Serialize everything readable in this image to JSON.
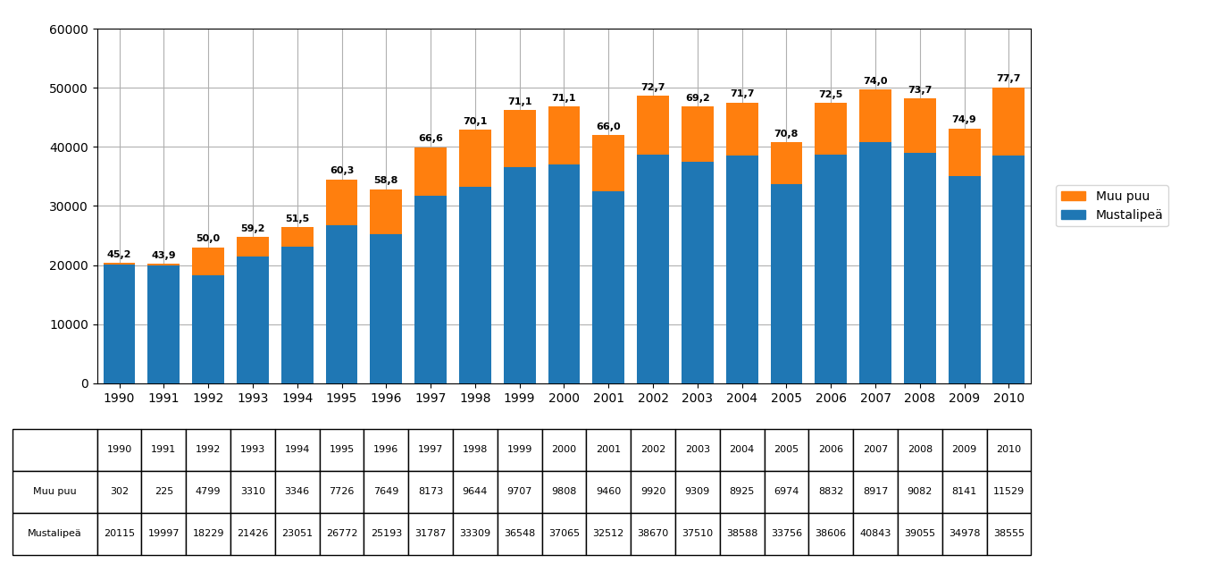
{
  "chart_data": {
    "type": "bar",
    "stacked": true,
    "categories": [
      "1990",
      "1991",
      "1992",
      "1993",
      "1994",
      "1995",
      "1996",
      "1997",
      "1998",
      "1999",
      "2000",
      "2001",
      "2002",
      "2003",
      "2004",
      "2005",
      "2006",
      "2007",
      "2008",
      "2009",
      "2010"
    ],
    "series": [
      {
        "name": "Mustalipeä",
        "values": [
          20115,
          19997,
          18229,
          21426,
          23051,
          26772,
          25193,
          31787,
          33309,
          36548,
          37065,
          32512,
          38670,
          37510,
          38588,
          33756,
          38606,
          40843,
          39055,
          34978,
          38555
        ]
      },
      {
        "name": "Muu puu",
        "values": [
          302,
          225,
          4799,
          3310,
          3346,
          7726,
          7649,
          8173,
          9644,
          9707,
          9808,
          9460,
          9920,
          9309,
          8925,
          6974,
          8832,
          8917,
          9082,
          8141,
          11529
        ]
      }
    ],
    "annotations": [
      "45,2",
      "43,9",
      "50,0",
      "59,2",
      "51,5",
      "60,3",
      "58,8",
      "66,6",
      "70,1",
      "71,1",
      "71,1",
      "66,0",
      "72,7",
      "69,2",
      "71,7",
      "70,8",
      "72,5",
      "74,0",
      "73,7",
      "74,9",
      "77,7"
    ],
    "ylim": [
      0,
      60000
    ],
    "yticks": [
      0,
      10000,
      20000,
      30000,
      40000,
      50000,
      60000
    ],
    "grid": true,
    "legend": "center left"
  }
}
